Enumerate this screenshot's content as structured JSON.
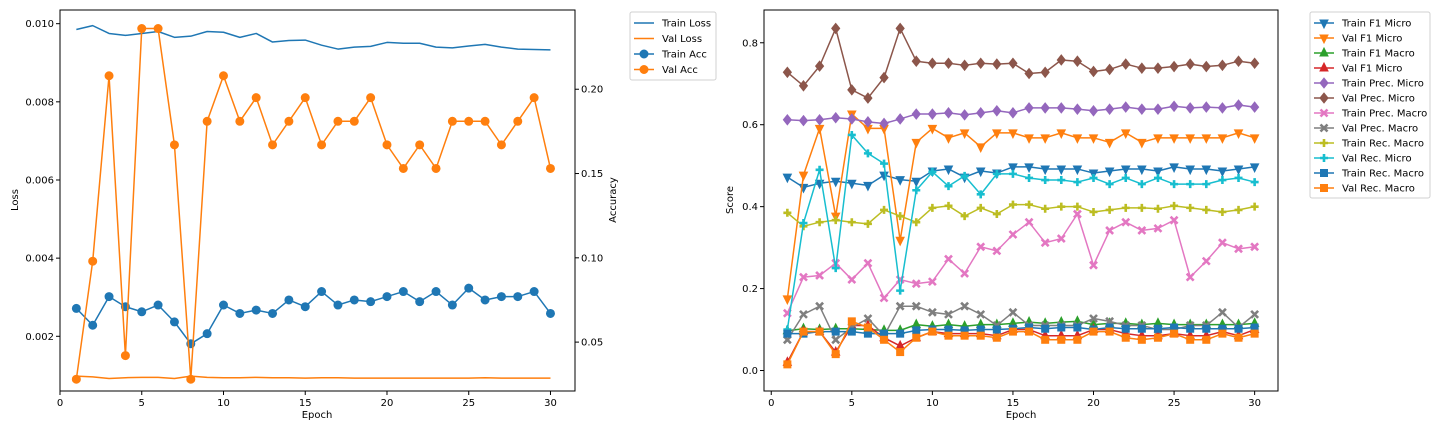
{
  "chart_data": [
    {
      "type": "line",
      "xlabel": "Epoch",
      "ylabel": "Loss",
      "y2label": "Accuracy",
      "xlim": [
        0,
        31.5
      ],
      "ylim": [
        0.0006,
        0.01035
      ],
      "y2lim": [
        0.021,
        0.247
      ],
      "xticks": [
        0,
        5,
        10,
        15,
        20,
        25,
        30
      ],
      "yticks": [
        0.002,
        0.004,
        0.006,
        0.008,
        0.01
      ],
      "yticklabels": [
        "0.002",
        "0.004",
        "0.006",
        "0.008",
        "0.010"
      ],
      "y2ticks": [
        0.05,
        0.1,
        0.15,
        0.2
      ],
      "y2ticklabels": [
        "0.05",
        "0.10",
        "0.15",
        "0.20"
      ],
      "grid": false,
      "legend_position": "outside-top-right",
      "x": [
        1,
        2,
        3,
        4,
        5,
        6,
        7,
        8,
        9,
        10,
        11,
        12,
        13,
        14,
        15,
        16,
        17,
        18,
        19,
        20,
        21,
        22,
        23,
        24,
        25,
        26,
        27,
        28,
        29,
        30
      ],
      "series": [
        {
          "name": "Train Loss",
          "axis": "left",
          "color": "#1f77b4",
          "marker": "none",
          "values": [
            0.00985,
            0.00995,
            0.00975,
            0.0097,
            0.00975,
            0.0098,
            0.00965,
            0.00968,
            0.0098,
            0.00978,
            0.00965,
            0.00975,
            0.00953,
            0.00957,
            0.00958,
            0.00945,
            0.00935,
            0.0094,
            0.00942,
            0.00952,
            0.0095,
            0.0095,
            0.0094,
            0.00938,
            0.00943,
            0.00947,
            0.0094,
            0.00935,
            0.00934,
            0.00933
          ]
        },
        {
          "name": "Val Loss",
          "axis": "left",
          "color": "#ff7f0e",
          "marker": "none",
          "values": [
            0.00098,
            0.00096,
            0.00092,
            0.00094,
            0.00095,
            0.00095,
            0.00092,
            0.00098,
            0.00095,
            0.00094,
            0.00094,
            0.00095,
            0.00094,
            0.00094,
            0.00093,
            0.00094,
            0.00094,
            0.00093,
            0.00093,
            0.00093,
            0.00093,
            0.00093,
            0.00093,
            0.00093,
            0.00093,
            0.00094,
            0.00093,
            0.00093,
            0.00093,
            0.00093
          ]
        },
        {
          "name": "Train Acc",
          "axis": "right",
          "color": "#1f77b4",
          "marker": "circle",
          "values": [
            0.07,
            0.06,
            0.077,
            0.071,
            0.068,
            0.072,
            0.062,
            0.049,
            0.055,
            0.072,
            0.067,
            0.069,
            0.067,
            0.075,
            0.071,
            0.08,
            0.072,
            0.075,
            0.074,
            0.077,
            0.08,
            0.074,
            0.08,
            0.072,
            0.082,
            0.075,
            0.077,
            0.077,
            0.08,
            0.067
          ]
        },
        {
          "name": "Val Acc",
          "axis": "right",
          "color": "#ff7f0e",
          "marker": "circle",
          "values": [
            0.028,
            0.098,
            0.208,
            0.042,
            0.236,
            0.236,
            0.167,
            0.028,
            0.181,
            0.208,
            0.181,
            0.195,
            0.167,
            0.181,
            0.195,
            0.167,
            0.181,
            0.181,
            0.195,
            0.167,
            0.153,
            0.167,
            0.153,
            0.181,
            0.181,
            0.181,
            0.167,
            0.181,
            0.195,
            0.153
          ]
        }
      ]
    },
    {
      "type": "line",
      "xlabel": "Epoch",
      "ylabel": "Score",
      "xlim": [
        -0.45,
        31.45
      ],
      "ylim": [
        -0.05,
        0.88
      ],
      "xticks": [
        0,
        5,
        10,
        15,
        20,
        25,
        30
      ],
      "yticks": [
        0.0,
        0.2,
        0.4,
        0.6,
        0.8
      ],
      "yticklabels": [
        "0.0",
        "0.2",
        "0.4",
        "0.6",
        "0.8"
      ],
      "grid": false,
      "legend_position": "outside-top-right",
      "x": [
        1,
        2,
        3,
        4,
        5,
        6,
        7,
        8,
        9,
        10,
        11,
        12,
        13,
        14,
        15,
        16,
        17,
        18,
        19,
        20,
        21,
        22,
        23,
        24,
        25,
        26,
        27,
        28,
        29,
        30
      ],
      "series": [
        {
          "name": "Train F1 Micro",
          "color": "#1f77b4",
          "marker": "tri_down",
          "values": [
            0.472,
            0.447,
            0.457,
            0.462,
            0.457,
            0.452,
            0.477,
            0.466,
            0.462,
            0.487,
            0.492,
            0.472,
            0.487,
            0.482,
            0.497,
            0.497,
            0.492,
            0.492,
            0.492,
            0.482,
            0.487,
            0.492,
            0.492,
            0.487,
            0.497,
            0.492,
            0.492,
            0.487,
            0.492,
            0.497
          ]
        },
        {
          "name": "Val F1 Micro",
          "color": "#ff7f0e",
          "marker": "tri_down",
          "values": [
            0.175,
            0.477,
            0.591,
            0.377,
            0.626,
            0.591,
            0.591,
            0.318,
            0.557,
            0.591,
            0.568,
            0.58,
            0.546,
            0.58,
            0.58,
            0.568,
            0.568,
            0.58,
            0.568,
            0.568,
            0.557,
            0.58,
            0.557,
            0.568,
            0.568,
            0.568,
            0.568,
            0.568,
            0.58,
            0.568
          ]
        },
        {
          "name": "Train F1 Macro",
          "color": "#2ca02c",
          "marker": "tri_up",
          "values": [
            0.097,
            0.102,
            0.1,
            0.102,
            0.102,
            0.1,
            0.098,
            0.098,
            0.112,
            0.108,
            0.112,
            0.108,
            0.112,
            0.112,
            0.115,
            0.118,
            0.115,
            0.118,
            0.12,
            0.112,
            0.115,
            0.115,
            0.112,
            0.115,
            0.112,
            0.112,
            0.112,
            0.112,
            0.112,
            0.115
          ]
        },
        {
          "name": "Val F1 Micro",
          "color": "#d62728",
          "marker": "tri_up",
          "values": [
            0.02,
            0.095,
            0.095,
            0.045,
            0.11,
            0.11,
            0.08,
            0.06,
            0.08,
            0.095,
            0.09,
            0.09,
            0.09,
            0.085,
            0.1,
            0.1,
            0.085,
            0.085,
            0.085,
            0.1,
            0.1,
            0.09,
            0.085,
            0.085,
            0.09,
            0.085,
            0.085,
            0.095,
            0.085,
            0.1
          ]
        },
        {
          "name": "Train Prec. Micro",
          "color": "#9467bd",
          "marker": "diamond",
          "values": [
            0.612,
            0.61,
            0.612,
            0.617,
            0.614,
            0.607,
            0.603,
            0.614,
            0.626,
            0.626,
            0.629,
            0.624,
            0.629,
            0.634,
            0.629,
            0.641,
            0.641,
            0.641,
            0.638,
            0.634,
            0.638,
            0.643,
            0.638,
            0.638,
            0.645,
            0.641,
            0.643,
            0.641,
            0.648,
            0.643
          ]
        },
        {
          "name": "Val Prec. Micro",
          "color": "#8c564b",
          "marker": "diamond",
          "values": [
            0.728,
            0.695,
            0.743,
            0.835,
            0.685,
            0.665,
            0.715,
            0.835,
            0.755,
            0.75,
            0.75,
            0.745,
            0.75,
            0.748,
            0.75,
            0.725,
            0.728,
            0.758,
            0.755,
            0.73,
            0.735,
            0.748,
            0.738,
            0.738,
            0.742,
            0.748,
            0.742,
            0.745,
            0.755,
            0.75
          ]
        },
        {
          "name": "Train Prec. Macro",
          "color": "#e377c2",
          "marker": "x",
          "values": [
            0.14,
            0.228,
            0.232,
            0.262,
            0.222,
            0.262,
            0.177,
            0.222,
            0.212,
            0.217,
            0.272,
            0.237,
            0.302,
            0.292,
            0.332,
            0.362,
            0.312,
            0.322,
            0.382,
            0.257,
            0.342,
            0.362,
            0.342,
            0.347,
            0.367,
            0.228,
            0.267,
            0.312,
            0.297,
            0.302
          ]
        },
        {
          "name": "Val Prec. Macro",
          "color": "#7f7f7f",
          "marker": "x",
          "values": [
            0.075,
            0.137,
            0.157,
            0.075,
            0.105,
            0.127,
            0.085,
            0.157,
            0.157,
            0.142,
            0.137,
            0.157,
            0.137,
            0.11,
            0.142,
            0.11,
            0.11,
            0.11,
            0.11,
            0.127,
            0.12,
            0.11,
            0.11,
            0.1,
            0.1,
            0.11,
            0.11,
            0.142,
            0.105,
            0.137
          ]
        },
        {
          "name": "Train Rec. Macro",
          "color": "#bcbd22",
          "marker": "plus",
          "values": [
            0.385,
            0.352,
            0.362,
            0.367,
            0.362,
            0.358,
            0.392,
            0.377,
            0.362,
            0.397,
            0.402,
            0.377,
            0.397,
            0.382,
            0.405,
            0.405,
            0.395,
            0.4,
            0.4,
            0.387,
            0.392,
            0.397,
            0.397,
            0.395,
            0.402,
            0.397,
            0.392,
            0.387,
            0.392,
            0.4
          ]
        },
        {
          "name": "Val Rec. Micro",
          "color": "#17becf",
          "marker": "plus",
          "values": [
            0.1,
            0.36,
            0.49,
            0.25,
            0.575,
            0.53,
            0.505,
            0.195,
            0.44,
            0.485,
            0.45,
            0.475,
            0.43,
            0.48,
            0.48,
            0.47,
            0.465,
            0.465,
            0.46,
            0.47,
            0.455,
            0.47,
            0.455,
            0.47,
            0.455,
            0.455,
            0.455,
            0.465,
            0.47,
            0.46
          ]
        },
        {
          "name": "Train Rec. Macro",
          "color": "#1f77b4",
          "marker": "square",
          "values": [
            0.09,
            0.09,
            0.095,
            0.095,
            0.095,
            0.09,
            0.09,
            0.09,
            0.098,
            0.1,
            0.1,
            0.098,
            0.1,
            0.1,
            0.102,
            0.105,
            0.102,
            0.105,
            0.105,
            0.1,
            0.105,
            0.102,
            0.102,
            0.102,
            0.105,
            0.102,
            0.102,
            0.102,
            0.102,
            0.105
          ]
        },
        {
          "name": "Val Rec. Macro",
          "color": "#ff7f0e",
          "marker": "square",
          "values": [
            0.015,
            0.095,
            0.095,
            0.04,
            0.12,
            0.105,
            0.075,
            0.045,
            0.08,
            0.095,
            0.085,
            0.085,
            0.085,
            0.08,
            0.095,
            0.095,
            0.075,
            0.075,
            0.075,
            0.095,
            0.095,
            0.08,
            0.075,
            0.08,
            0.09,
            0.075,
            0.075,
            0.09,
            0.08,
            0.09
          ]
        }
      ]
    }
  ]
}
